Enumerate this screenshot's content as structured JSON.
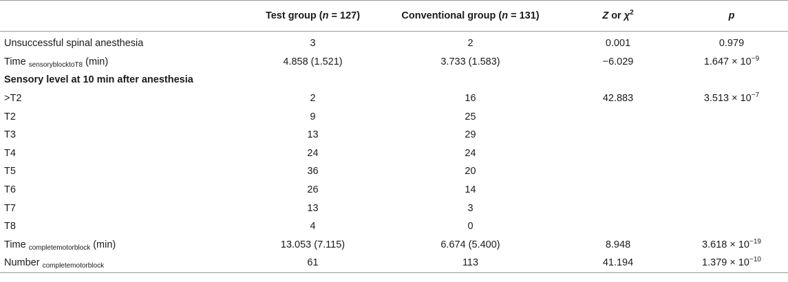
{
  "header": {
    "col1": {
      "label": "Test group (",
      "n": "n",
      "rest": " = 127)"
    },
    "col2": {
      "label": "Conventional group (",
      "n": "n",
      "rest": " = 131)"
    },
    "col3": {
      "z": "Z",
      "rest": " or ",
      "chi": "χ",
      "sup": "2"
    },
    "col4": {
      "p": "p"
    }
  },
  "rows": [
    {
      "label": "Unsuccessful spinal anesthesia",
      "test": "3",
      "conv": "2",
      "z": "0.001",
      "p": "0.979"
    },
    {
      "label": "Time",
      "sub": "sensoryblocktoT8",
      "suffix": " (min)",
      "test": "4.858 (1.521)",
      "conv": "3.733 (1.583)",
      "z": "−6.029",
      "p_base": "1.647 × 10",
      "p_exp": "−9"
    },
    {
      "label": "Sensory level at 10 min after anesthesia"
    },
    {
      "label": ">T2",
      "test": "2",
      "conv": "16",
      "z": "42.883",
      "p_base": "3.513 × 10",
      "p_exp": "−7"
    },
    {
      "label": "T2",
      "test": "9",
      "conv": "25"
    },
    {
      "label": "T3",
      "test": "13",
      "conv": "29"
    },
    {
      "label": "T4",
      "test": "24",
      "conv": "24"
    },
    {
      "label": "T5",
      "test": "36",
      "conv": "20"
    },
    {
      "label": "T6",
      "test": "26",
      "conv": "14"
    },
    {
      "label": "T7",
      "test": "13",
      "conv": "3"
    },
    {
      "label": "T8",
      "test": "4",
      "conv": "0"
    },
    {
      "label": "Time",
      "sub": "completemotorblock",
      "suffix": " (min)",
      "test": "13.053 (7.115)",
      "conv": "6.674 (5.400)",
      "z": "8.948",
      "p_base": "3.618 × 10",
      "p_exp": "−19"
    },
    {
      "label": "Number",
      "sub": "completemotorblock",
      "suffix": "",
      "test": "61",
      "conv": "113",
      "z": "41.194",
      "p_base": "1.379 × 10",
      "p_exp": "−10"
    }
  ]
}
